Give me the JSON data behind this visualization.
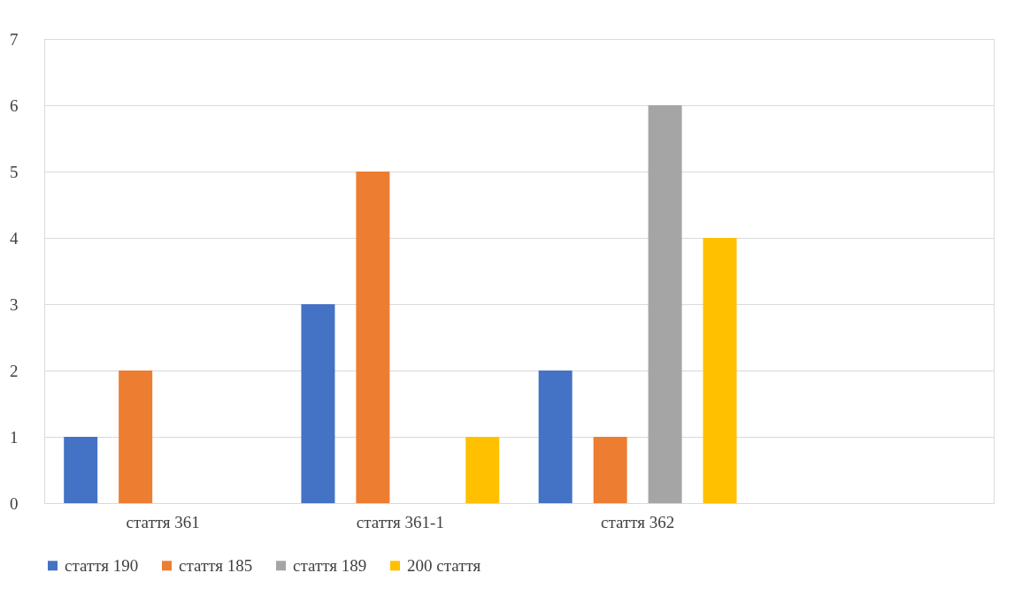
{
  "chart_data": {
    "type": "bar",
    "categories": [
      "стаття 361",
      "стаття 361-1",
      "стаття 362",
      null
    ],
    "series": [
      {
        "name": "стаття 190",
        "color": "#4472c4",
        "values": [
          1,
          3,
          2,
          null
        ]
      },
      {
        "name": "стаття 185",
        "color": "#ed7d31",
        "values": [
          2,
          5,
          1,
          null
        ]
      },
      {
        "name": "стаття 189",
        "color": "#a5a5a5",
        "values": [
          null,
          null,
          6,
          null
        ]
      },
      {
        "name": "200 стаття",
        "color": "#ffc000",
        "values": [
          null,
          1,
          4,
          null
        ]
      }
    ],
    "ylim": [
      0,
      7
    ],
    "yticks": [
      0,
      1,
      2,
      3,
      4,
      5,
      6,
      7
    ],
    "grid": "y",
    "legend": "bottom"
  }
}
